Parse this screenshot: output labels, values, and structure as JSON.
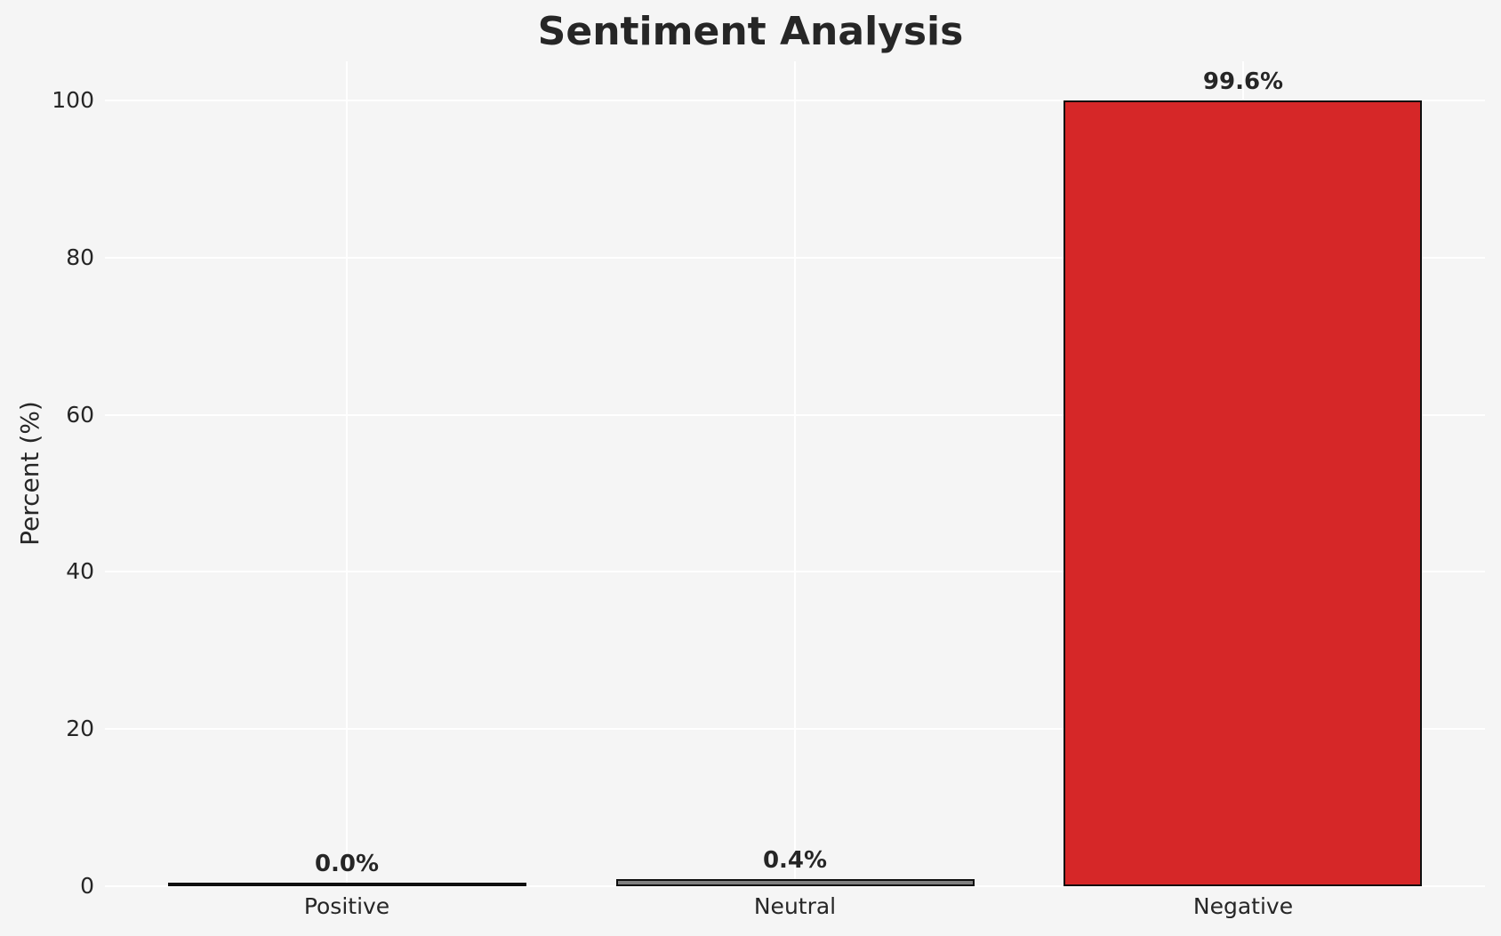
{
  "chart_data": {
    "type": "bar",
    "title": "Sentiment Analysis",
    "xlabel": "",
    "ylabel": "Percent (%)",
    "categories": [
      "Positive",
      "Neutral",
      "Negative"
    ],
    "values": [
      0.0,
      0.4,
      99.6
    ],
    "bar_labels": [
      "0.0%",
      "0.4%",
      "99.6%"
    ],
    "bar_colors": [
      "#2ca02c",
      "#808080",
      "#d62728"
    ],
    "bar_edge_color": "#0f0f0f",
    "ylim": [
      0,
      105
    ],
    "yticks": [
      0,
      20,
      40,
      60,
      80,
      100
    ],
    "grid": "on",
    "legend": "none",
    "background_color": "#f5f5f5",
    "gridline_color": "#ffffff",
    "text_color": "#262626"
  }
}
